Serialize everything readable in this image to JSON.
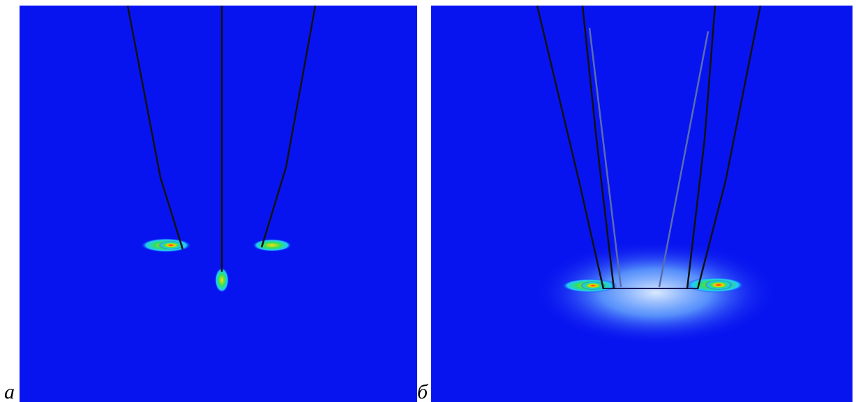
{
  "panels": [
    {
      "label": "а"
    },
    {
      "label": "б"
    }
  ]
}
